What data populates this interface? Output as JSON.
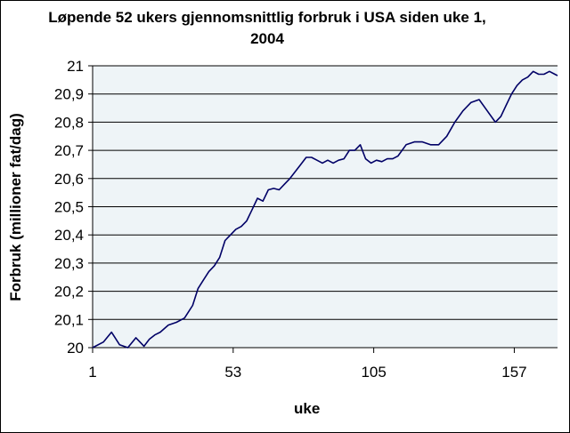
{
  "chart_data": {
    "type": "line",
    "title": "Løpende 52 ukers gjennomsnittlig forbruk i USA siden uke 1, 2004",
    "xlabel": "uke",
    "ylabel": "Forbruk (millioner fat/dag)",
    "xlim": [
      1,
      173
    ],
    "ylim": [
      20,
      21
    ],
    "x_ticks": [
      1,
      53,
      105,
      157
    ],
    "y_ticks": [
      20,
      20.1,
      20.2,
      20.3,
      20.4,
      20.5,
      20.6,
      20.7,
      20.8,
      20.9,
      21
    ],
    "x_tick_labels": [
      "1",
      "53",
      "105",
      "157"
    ],
    "y_tick_labels": [
      "20",
      "20,1",
      "20,2",
      "20,3",
      "20,4",
      "20,5",
      "20,6",
      "20,7",
      "20,8",
      "20,9",
      "21"
    ],
    "grid": "horizontal",
    "legend": "none",
    "colors": {
      "line": "#000066",
      "plot_bg": "#eef4f7",
      "frame": "#000000"
    },
    "x": [
      1,
      5,
      8,
      11,
      14,
      17,
      20,
      22,
      24,
      26,
      29,
      32,
      35,
      38,
      40,
      42,
      44,
      46,
      48,
      50,
      52,
      54,
      56,
      58,
      60,
      62,
      64,
      66,
      68,
      70,
      72,
      74,
      76,
      78,
      80,
      82,
      84,
      86,
      88,
      90,
      92,
      94,
      96,
      98,
      100,
      102,
      104,
      106,
      108,
      110,
      112,
      114,
      117,
      120,
      123,
      126,
      129,
      132,
      135,
      138,
      141,
      144,
      147,
      150,
      152,
      154,
      156,
      158,
      160,
      162,
      164,
      166,
      168,
      170,
      172,
      173
    ],
    "values": [
      20.0,
      20.02,
      20.055,
      20.01,
      20.0,
      20.035,
      20.005,
      20.03,
      20.045,
      20.055,
      20.08,
      20.09,
      20.105,
      20.15,
      20.21,
      20.24,
      20.27,
      20.29,
      20.32,
      20.38,
      20.4,
      20.42,
      20.43,
      20.45,
      20.49,
      20.53,
      20.52,
      20.56,
      20.565,
      20.56,
      20.58,
      20.6,
      20.625,
      20.65,
      20.675,
      20.675,
      20.665,
      20.655,
      20.665,
      20.655,
      20.665,
      20.67,
      20.7,
      20.7,
      20.72,
      20.67,
      20.655,
      20.665,
      20.66,
      20.67,
      20.67,
      20.68,
      20.72,
      20.73,
      20.73,
      20.72,
      20.72,
      20.75,
      20.8,
      20.84,
      20.87,
      20.88,
      20.84,
      20.8,
      20.82,
      20.86,
      20.9,
      20.93,
      20.95,
      20.96,
      20.98,
      20.97,
      20.97,
      20.98,
      20.97,
      20.965
    ]
  }
}
